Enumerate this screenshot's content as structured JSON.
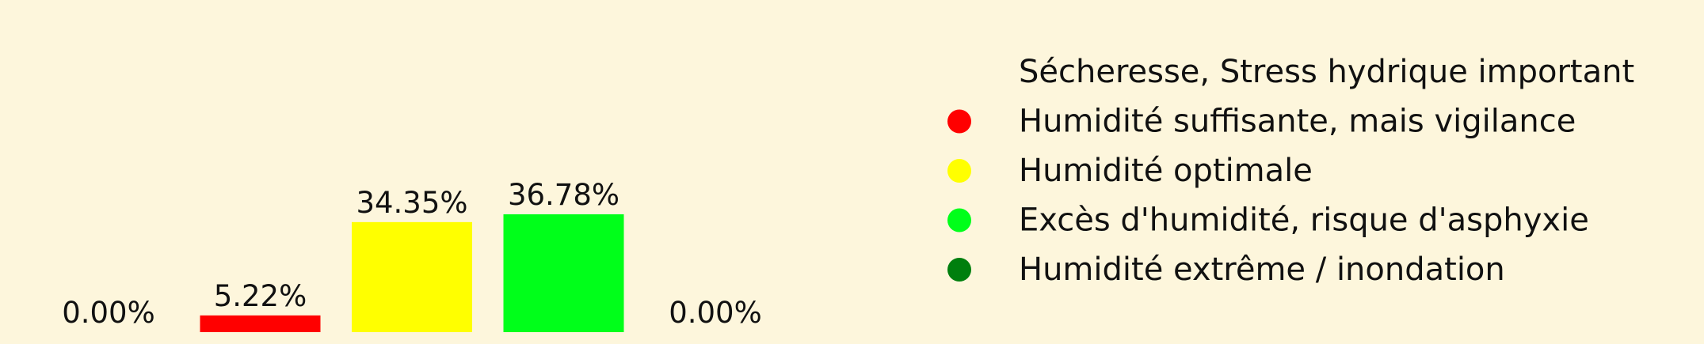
{
  "chart_data": {
    "type": "bar",
    "categories": [
      "Sécheresse, Stress hydrique important",
      "Humidité suffisante, mais vigilance",
      "Humidité optimale",
      "Excès d'humidité, risque d'asphyxie",
      "Humidité extrême / inondation"
    ],
    "values": [
      0.0,
      5.22,
      34.35,
      36.78,
      0.0
    ],
    "data_labels": [
      "0.00%",
      "5.22%",
      "34.35%",
      "36.78%",
      "0.00%"
    ],
    "colors": [
      "#FDF6DC",
      "#FF0000",
      "#FFFF00",
      "#00FF1A",
      "#007F0E"
    ],
    "unit": "%",
    "ylim": [
      0,
      40
    ],
    "grid": false,
    "legend": {
      "placement": "right",
      "entries": [
        "Sécheresse, Stress hydrique important",
        "Humidité suffisante, mais vigilance",
        "Humidité optimale",
        "Excès d'humidité, risque d'asphyxie",
        "Humidité extrême / inondation"
      ]
    }
  },
  "colors": {
    "background": "#FDF6DC",
    "text": "#111111"
  }
}
